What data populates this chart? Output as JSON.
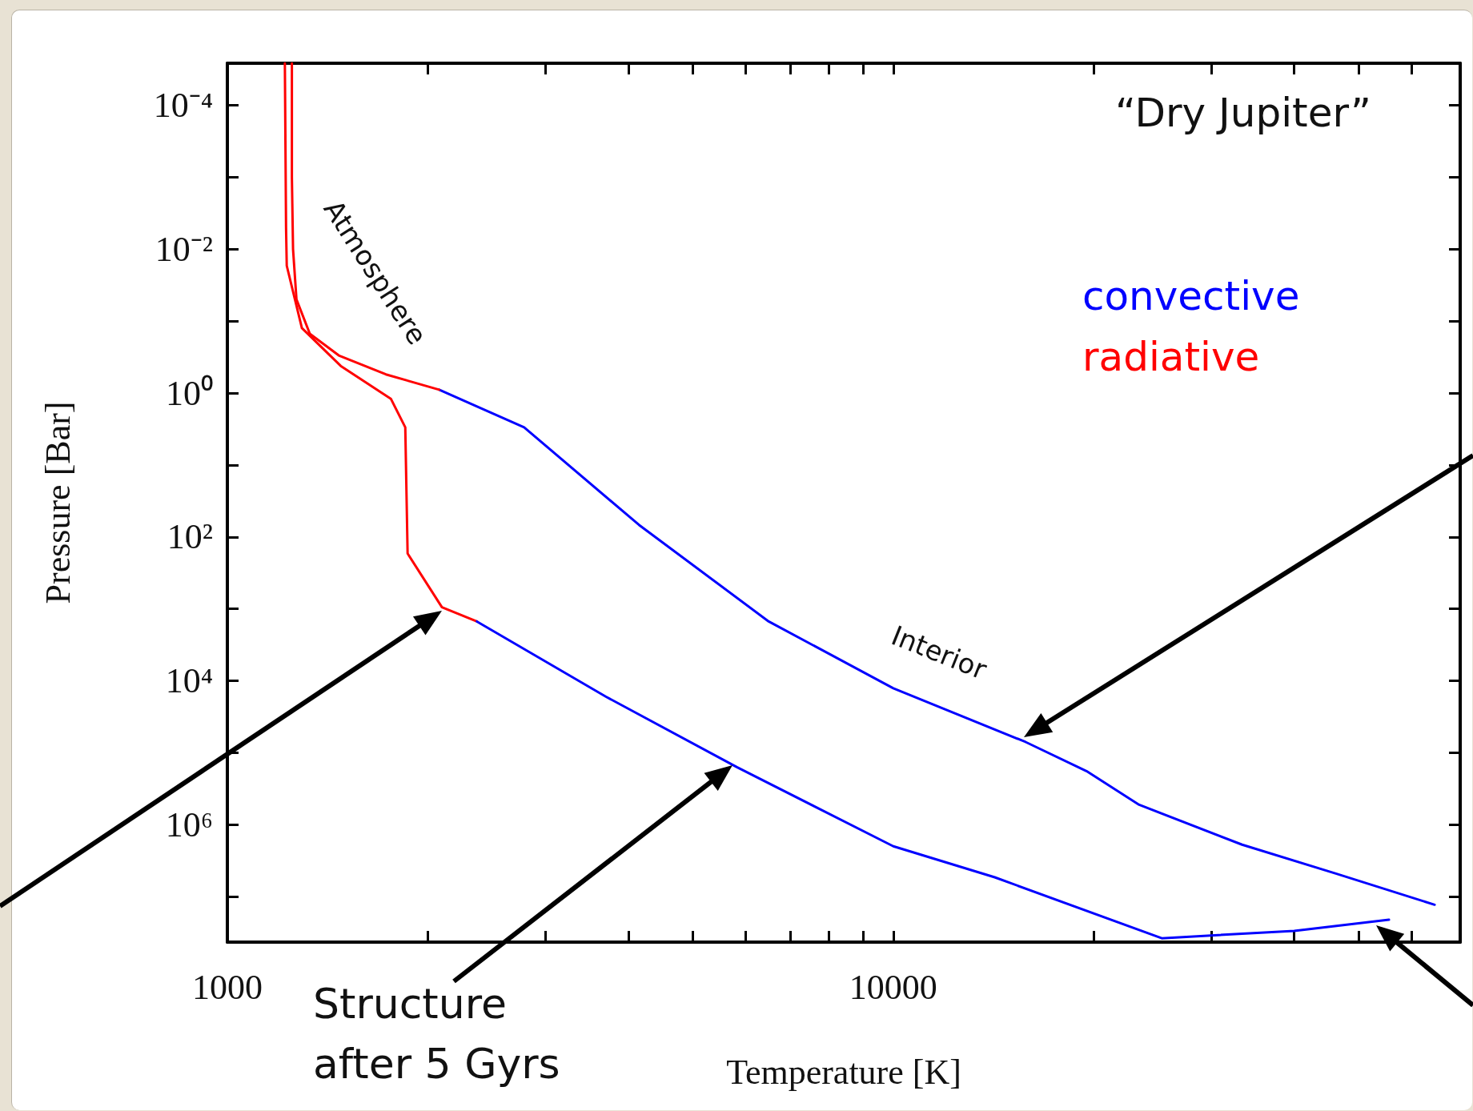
{
  "chart_data": {
    "type": "line",
    "xlabel": "Temperature [K]",
    "ylabel": "Pressure [Bar]",
    "log": "xy",
    "legend": "top right",
    "xlim": [
      1000,
      71000
    ],
    "xticks": [
      1000,
      {
        "value": 2000,
        "label": null
      },
      {
        "value": 3000,
        "label": null
      },
      {
        "value": 4000,
        "label": null
      },
      {
        "value": 5000,
        "label": null
      },
      {
        "value": 6000,
        "label": null
      },
      {
        "value": 7000,
        "label": null
      },
      {
        "value": 8000,
        "label": null
      },
      {
        "value": 9000,
        "label": null
      },
      10000,
      {
        "value": 20000,
        "label": null
      },
      {
        "value": 30000,
        "label": null
      },
      {
        "value": 40000,
        "label": null
      },
      {
        "value": 50000,
        "label": null
      },
      {
        "value": 60000,
        "label": null
      }
    ],
    "ylim": [
      43000000,
      2.6e-05
    ],
    "yticks": [
      {
        "value": 0.0001,
        "label": "10⁻⁴"
      },
      {
        "value": 0.001,
        "label": null
      },
      {
        "value": 0.01,
        "label": "10⁻²"
      },
      {
        "value": 0.1,
        "label": null
      },
      {
        "value": 1,
        "label": "10⁰"
      },
      {
        "value": 10,
        "label": null
      },
      {
        "value": 100,
        "label": "10²"
      },
      {
        "value": 1000,
        "label": null
      },
      {
        "value": 10000,
        "label": "10⁴"
      },
      {
        "value": 100000,
        "label": null
      },
      {
        "value": 1000000,
        "label": "10⁶"
      },
      {
        "value": 10000000,
        "label": null
      }
    ],
    "series": [
      {
        "name": "convective",
        "color": "#0000ff",
        "x": [
          2080,
          2790,
          4150,
          6500,
          10000,
          15800,
          19500,
          23400,
          33400,
          46200,
          65000
        ],
        "values": [
          0.9,
          3,
          68,
          1500,
          12700,
          71000,
          180000,
          530000,
          1900000,
          4800000,
          13000000
        ]
      },
      {
        "name": "radiative",
        "color": "#ff0000",
        "x": [
          1250,
          1250,
          1255,
          1270,
          1330,
          1470,
          1730,
          2080
        ],
        "values": [
          2.6e-05,
          0.001,
          0.01,
          0.05,
          0.15,
          0.3,
          0.55,
          0.9
        ]
      },
      {
        "color": "#ff0000",
        "x": [
          1220,
          1225,
          1228,
          1294,
          1480,
          1760,
          1850,
          1865,
          2100,
          2370
        ],
        "values": [
          2.6e-05,
          0.005,
          0.017,
          0.125,
          0.42,
          1.2,
          3,
          170,
          950,
          1500
        ]
      },
      {
        "color": "#0000ff",
        "x": [
          2370,
          3700,
          5830,
          10000,
          14200,
          25300,
          40000,
          55500
        ],
        "values": [
          1500,
          16600,
          160000,
          2000000,
          5400000,
          38000000,
          30000000,
          21000000
        ]
      }
    ],
    "annotations": [
      "“Dry Jupiter”",
      "Atmosphere",
      "Interior",
      "Structure after 5 Gyrs"
    ]
  }
}
